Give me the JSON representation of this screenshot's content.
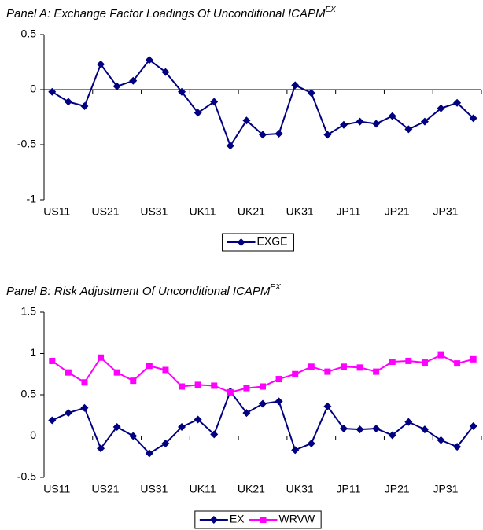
{
  "chart_data": [
    {
      "type": "line",
      "title": "Panel A: Exchange Factor Loadings Of Unconditional ICAPM",
      "title_superscript": "EX",
      "categories": [
        "US11",
        null,
        null,
        "US21",
        null,
        null,
        "US31",
        null,
        null,
        "UK11",
        null,
        null,
        "UK21",
        null,
        null,
        "UK31",
        null,
        null,
        "JP11",
        null,
        null,
        "JP21",
        null,
        null,
        "JP31",
        null,
        null
      ],
      "series": [
        {
          "name": "EXGE",
          "color": "#000080",
          "marker": "diamond",
          "values": [
            -0.02,
            -0.11,
            -0.15,
            0.23,
            0.03,
            0.08,
            0.27,
            0.16,
            -0.02,
            -0.21,
            -0.11,
            -0.51,
            -0.28,
            -0.41,
            -0.4,
            0.04,
            -0.03,
            -0.41,
            -0.32,
            -0.29,
            -0.31,
            -0.24,
            -0.36,
            -0.29,
            -0.17,
            -0.12,
            -0.26
          ]
        }
      ],
      "ylim": [
        -1,
        0.5
      ],
      "yticks": [
        -1,
        -0.5,
        0,
        0.5
      ]
    },
    {
      "type": "line",
      "title": "Panel B: Risk Adjustment Of Unconditional ICAPM",
      "title_superscript": "EX",
      "categories": [
        "US11",
        null,
        null,
        "US21",
        null,
        null,
        "US31",
        null,
        null,
        "UK11",
        null,
        null,
        "UK21",
        null,
        null,
        "UK31",
        null,
        null,
        "JP11",
        null,
        null,
        "JP21",
        null,
        null,
        "JP31",
        null,
        null
      ],
      "series": [
        {
          "name": "EX",
          "color": "#000080",
          "marker": "diamond",
          "values": [
            0.19,
            0.28,
            0.34,
            -0.15,
            0.11,
            0.0,
            -0.21,
            -0.09,
            0.11,
            0.2,
            0.02,
            0.54,
            0.28,
            0.39,
            0.42,
            -0.17,
            -0.09,
            0.36,
            0.09,
            0.08,
            0.09,
            0.01,
            0.17,
            0.08,
            -0.05,
            -0.13,
            0.12
          ]
        },
        {
          "name": "WRVW",
          "color": "#ff00ff",
          "marker": "square",
          "values": [
            0.91,
            0.77,
            0.65,
            0.95,
            0.77,
            0.67,
            0.85,
            0.8,
            0.6,
            0.62,
            0.61,
            0.53,
            0.58,
            0.6,
            0.69,
            0.75,
            0.84,
            0.78,
            0.84,
            0.83,
            0.78,
            0.9,
            0.91,
            0.89,
            0.98,
            0.88,
            0.93
          ]
        }
      ],
      "ylim": [
        -0.5,
        1.5
      ],
      "yticks": [
        -0.5,
        0,
        0.5,
        1,
        1.5
      ]
    }
  ]
}
